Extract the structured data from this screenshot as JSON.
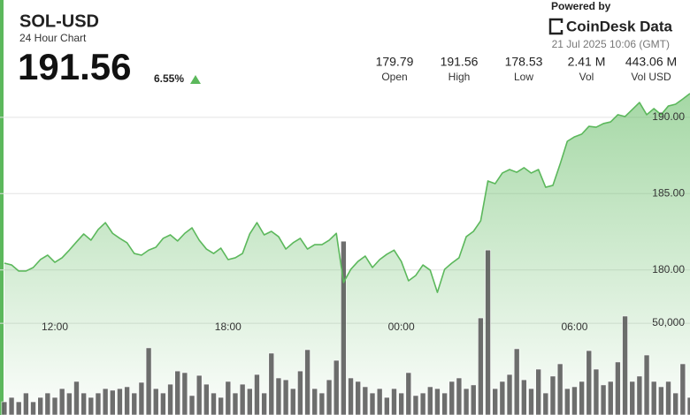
{
  "header": {
    "title": "SOL-USD",
    "subtitle": "24 Hour Chart",
    "price": "191.56",
    "change": "6.55%",
    "stats": [
      {
        "value": "179.79",
        "label": "Open"
      },
      {
        "value": "191.56",
        "label": "High"
      },
      {
        "value": "178.53",
        "label": "Low"
      },
      {
        "value": "2.41 M",
        "label": "Vol"
      },
      {
        "value": "443.06 M",
        "label": "Vol USD"
      }
    ],
    "powered_by": "Powered by",
    "brand": "CoinDesk Data",
    "timestamp": "21 Jul 2025 10:06 (GMT)"
  },
  "chart_data": {
    "type": "line",
    "x": [
      10.25,
      10.5,
      10.75,
      11,
      11.25,
      11.5,
      11.75,
      12,
      12.25,
      12.5,
      12.75,
      13,
      13.25,
      13.5,
      13.75,
      14,
      14.25,
      14.5,
      14.75,
      15,
      15.25,
      15.5,
      15.75,
      16,
      16.25,
      16.5,
      16.75,
      17,
      17.25,
      17.5,
      17.75,
      18,
      18.25,
      18.5,
      18.75,
      19,
      19.25,
      19.5,
      19.75,
      20,
      20.25,
      20.5,
      20.75,
      21,
      21.25,
      21.5,
      21.75,
      22,
      22.25,
      22.5,
      22.75,
      23,
      23.25,
      23.5,
      23.75,
      24,
      24.25,
      24.5,
      24.75,
      25,
      25.25,
      25.5,
      25.75,
      26,
      26.25,
      26.5,
      26.75,
      27,
      27.25,
      27.5,
      27.75,
      28,
      28.25,
      28.5,
      28.75,
      29,
      29.25,
      29.5,
      29.75,
      30,
      30.25,
      30.5,
      30.75,
      31,
      31.25,
      31.5,
      31.75,
      32,
      32.25,
      32.5,
      32.75,
      33,
      33.25,
      33.5,
      33.75,
      34
    ],
    "series": [
      {
        "color": "#5cb85c",
        "values": [
          180.45,
          180.33,
          179.93,
          179.93,
          180.16,
          180.68,
          180.97,
          180.5,
          180.8,
          181.3,
          181.84,
          182.36,
          181.95,
          182.65,
          183.1,
          182.4,
          182.07,
          181.78,
          181.08,
          180.97,
          181.3,
          181.49,
          182.07,
          182.3,
          181.9,
          182.4,
          182.76,
          181.95,
          181.37,
          181.08,
          181.43,
          180.68,
          180.8,
          181.08,
          182.36,
          183.1,
          182.3,
          182.53,
          182.18,
          181.37,
          181.78,
          182.07,
          181.37,
          181.66,
          181.66,
          181.95,
          182.4,
          179.18,
          180.04,
          180.56,
          180.91,
          180.16,
          180.68,
          181.03,
          181.3,
          180.56,
          179.29,
          179.64,
          180.33,
          179.99,
          178.53,
          180.04,
          180.45,
          180.8,
          182.18,
          182.53,
          183.22,
          185.83,
          185.65,
          186.35,
          186.58,
          186.4,
          186.7,
          186.35,
          186.58,
          185.42,
          185.54,
          186.93,
          188.43,
          188.72,
          188.9,
          189.41,
          189.35,
          189.59,
          189.7,
          190.17,
          190.05,
          190.51,
          190.97,
          190.17,
          190.57,
          190.17,
          190.74,
          190.86,
          191.2,
          191.56
        ]
      },
      {
        "type": "bar",
        "axis": "y2",
        "color": "#555555",
        "values": [
          7200,
          9600,
          7200,
          12000,
          7200,
          9600,
          12000,
          9600,
          14400,
          12000,
          18300,
          12000,
          9600,
          12000,
          14400,
          13500,
          14400,
          15400,
          12000,
          17800,
          36600,
          14400,
          12000,
          16800,
          24000,
          23100,
          10600,
          21600,
          16800,
          12000,
          9600,
          18300,
          12000,
          16800,
          14400,
          22100,
          12000,
          33700,
          20200,
          19200,
          14400,
          24000,
          35600,
          14400,
          12000,
          19200,
          29800,
          94700,
          20200,
          18300,
          15400,
          12000,
          14400,
          9600,
          14400,
          12000,
          23100,
          10600,
          12000,
          15400,
          14400,
          12000,
          18300,
          20200,
          14400,
          16400,
          52900,
          89900,
          14400,
          18300,
          22100,
          36100,
          19200,
          14400,
          25000,
          12000,
          21200,
          27900,
          14400,
          15400,
          18300,
          35100,
          25000,
          16400,
          18300,
          28900,
          53900,
          18300,
          21200,
          32700,
          18300,
          15400,
          18300,
          12000,
          27900,
          9600
        ]
      }
    ],
    "xlim": [
      10.1,
      34
    ],
    "xticks": [
      {
        "value": 12,
        "label": "12:00"
      },
      {
        "value": 18,
        "label": "18:00"
      },
      {
        "value": 24,
        "label": "00:00"
      },
      {
        "value": 30,
        "label": "06:00"
      }
    ],
    "ylim": [
      170.5,
      191.9
    ],
    "yticks": [
      {
        "value": 180,
        "label": "180.00"
      },
      {
        "value": 185,
        "label": "185.00"
      },
      {
        "value": 190,
        "label": "190.00"
      }
    ],
    "y2lim": [
      0,
      178000
    ],
    "y2ticks": [
      {
        "value": 50000,
        "label": "50,000"
      }
    ],
    "grid": true
  }
}
